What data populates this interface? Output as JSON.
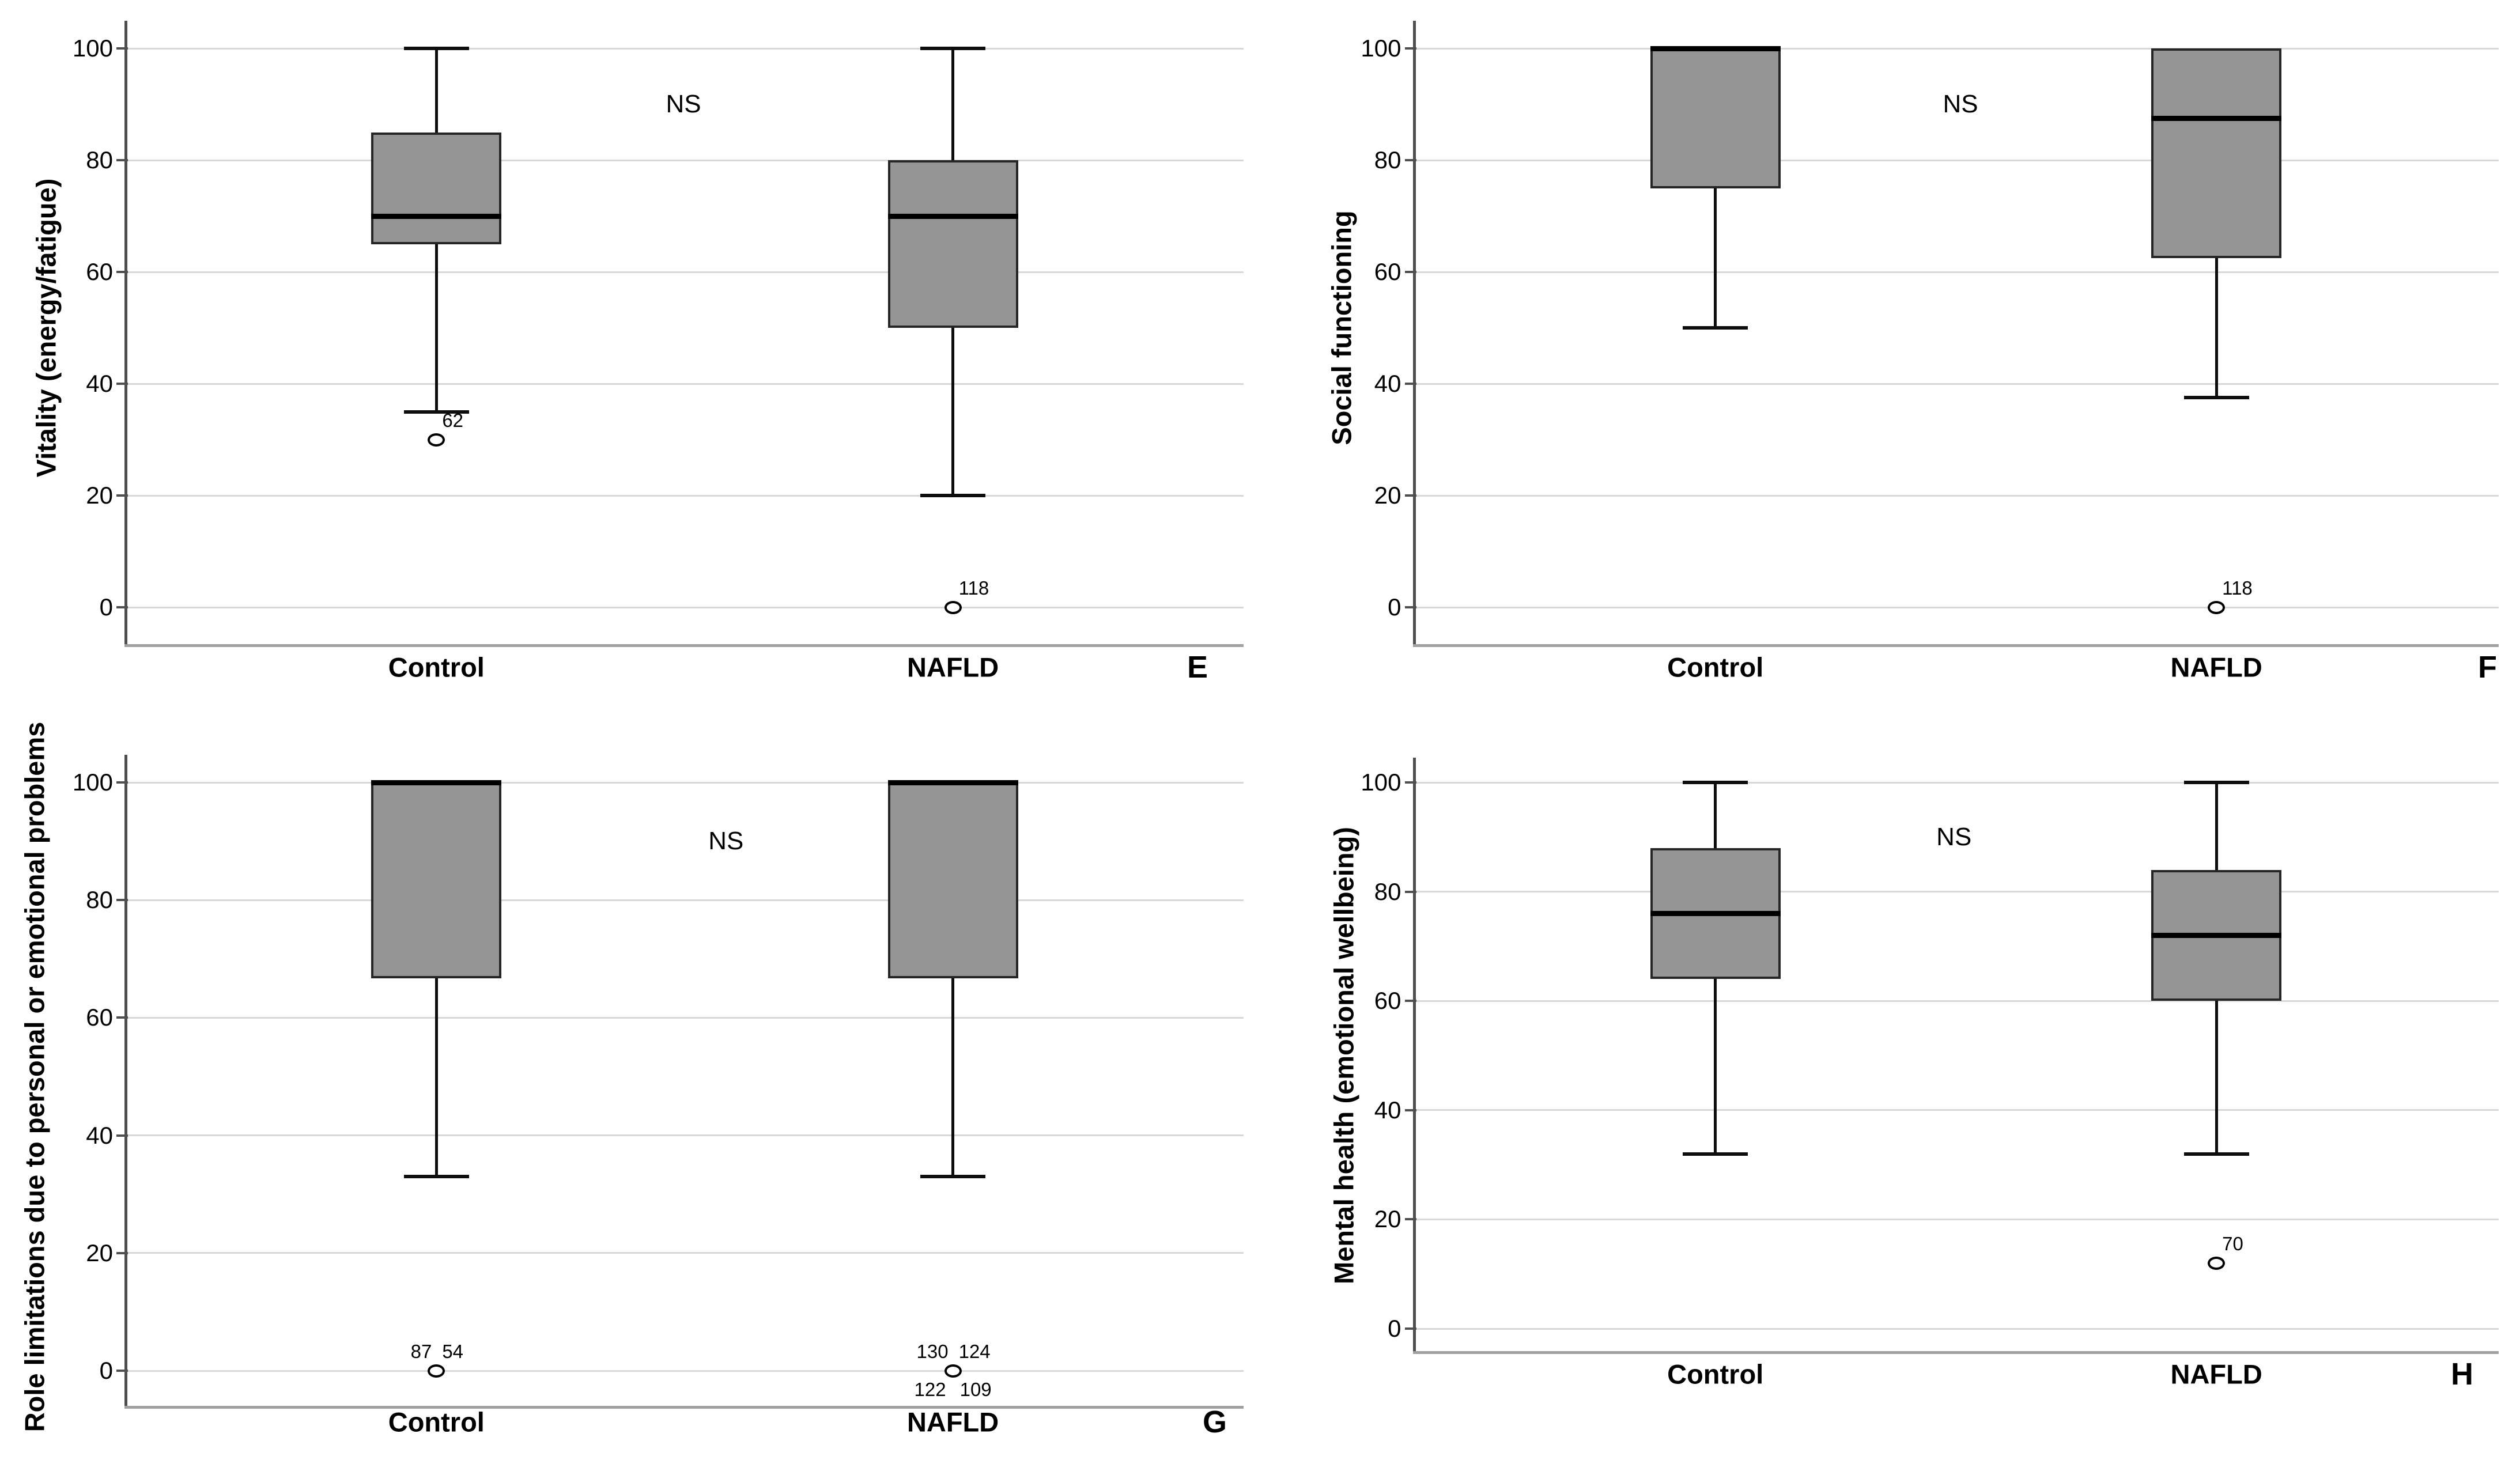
{
  "figure": {
    "groups": [
      "Control",
      "NAFLD"
    ],
    "colors": {
      "box_fill": "#959595",
      "box_border": "#262626",
      "median": "#000000",
      "whisker": "#0d0d0d",
      "gridline": "#d8d8d8",
      "y_axis": "#4f4f4f",
      "x_axis": "#a0a0a0",
      "background": "#ffffff",
      "text": "#000000"
    }
  },
  "chart_data": [
    {
      "type": "box",
      "panel_label": "E",
      "ylabel": "Vitality (energy/fatigue)",
      "significance": "NS",
      "categories": [
        "Control",
        "NAFLD"
      ],
      "ylim": [
        0,
        100
      ],
      "yticks": [
        0,
        20,
        40,
        60,
        80,
        100
      ],
      "grid": true,
      "legend": "none",
      "boxes": [
        {
          "category": "Control",
          "whisker_low": 35,
          "q1": 65,
          "median": 70,
          "q3": 85,
          "whisker_high": 100,
          "outliers": [
            {
              "value": 30,
              "labels": [
                {
                  "text": "62",
                  "pos": "tr"
                }
              ]
            }
          ]
        },
        {
          "category": "NAFLD",
          "whisker_low": 20,
          "q1": 50,
          "median": 70,
          "q3": 80,
          "whisker_high": 100,
          "outliers": [
            {
              "value": 0,
              "labels": [
                {
                  "text": "118",
                  "pos": "tr"
                }
              ]
            }
          ]
        }
      ]
    },
    {
      "type": "box",
      "panel_label": "F",
      "ylabel": "Social functioning",
      "significance": "NS",
      "categories": [
        "Control",
        "NAFLD"
      ],
      "ylim": [
        0,
        100
      ],
      "yticks": [
        0,
        20,
        40,
        60,
        80,
        100
      ],
      "grid": true,
      "legend": "none",
      "boxes": [
        {
          "category": "Control",
          "whisker_low": 50,
          "q1": 75,
          "median": 100,
          "q3": 100,
          "whisker_high": null,
          "outliers": []
        },
        {
          "category": "NAFLD",
          "whisker_low": 37.5,
          "q1": 62.5,
          "median": 87.5,
          "q3": 100,
          "whisker_high": null,
          "outliers": [
            {
              "value": 0,
              "labels": [
                {
                  "text": "118",
                  "pos": "tr"
                }
              ]
            }
          ]
        }
      ]
    },
    {
      "type": "box",
      "panel_label": "G",
      "ylabel": "Role limitations due to personal or emotional problems",
      "significance": "NS",
      "categories": [
        "Control",
        "NAFLD"
      ],
      "ylim": [
        0,
        100
      ],
      "yticks": [
        0,
        20,
        40,
        60,
        80,
        100
      ],
      "grid": true,
      "legend": "none",
      "boxes": [
        {
          "category": "Control",
          "whisker_low": 33,
          "q1": 66.7,
          "median": 100,
          "q3": 100,
          "whisker_high": null,
          "outliers": [
            {
              "value": 0,
              "labels": [
                {
                  "text": "87",
                  "pos": "tl"
                },
                {
                  "text": "54",
                  "pos": "tr"
                }
              ]
            }
          ]
        },
        {
          "category": "NAFLD",
          "whisker_low": 33,
          "q1": 66.7,
          "median": 100,
          "q3": 100,
          "whisker_high": null,
          "outliers": [
            {
              "value": 0,
              "labels": [
                {
                  "text": "130",
                  "pos": "tl"
                },
                {
                  "text": "124",
                  "pos": "tr"
                },
                {
                  "text": "122",
                  "pos": "bl"
                },
                {
                  "text": "109",
                  "pos": "br"
                }
              ]
            }
          ]
        }
      ]
    },
    {
      "type": "box",
      "panel_label": "H",
      "ylabel": "Mental health (emotional wellbeing)",
      "significance": "NS",
      "categories": [
        "Control",
        "NAFLD"
      ],
      "ylim": [
        0,
        100
      ],
      "yticks": [
        0,
        20,
        40,
        60,
        80,
        100
      ],
      "grid": true,
      "legend": "none",
      "boxes": [
        {
          "category": "Control",
          "whisker_low": 32,
          "q1": 64,
          "median": 76,
          "q3": 88,
          "whisker_high": 100,
          "outliers": []
        },
        {
          "category": "NAFLD",
          "whisker_low": 32,
          "q1": 60,
          "median": 72,
          "q3": 84,
          "whisker_high": 100,
          "outliers": [
            {
              "value": 12,
              "labels": [
                {
                  "text": "70",
                  "pos": "tr"
                }
              ]
            }
          ]
        }
      ]
    }
  ]
}
